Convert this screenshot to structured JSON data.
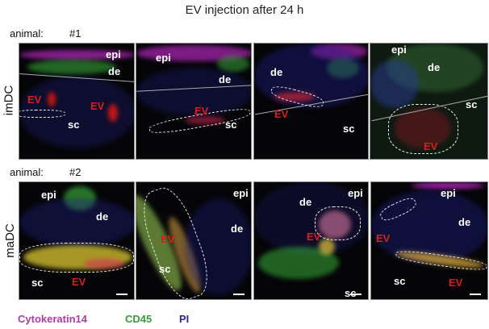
{
  "title": "EV injection after 24 h",
  "animals": [
    {
      "label": "animal:",
      "number": "#1"
    },
    {
      "label": "animal:",
      "number": "#2"
    }
  ],
  "rows": [
    {
      "label": "imDC"
    },
    {
      "label": "maDC"
    }
  ],
  "region_labels": {
    "epi": "epi",
    "de": "de",
    "sc": "sc",
    "ev": "EV"
  },
  "legend": [
    {
      "label": "Cytokeratin14",
      "color": "#b03aa8"
    },
    {
      "label": "CD45",
      "color": "#3a9a3a"
    },
    {
      "label": "PI",
      "color": "#2a2a8a"
    }
  ]
}
